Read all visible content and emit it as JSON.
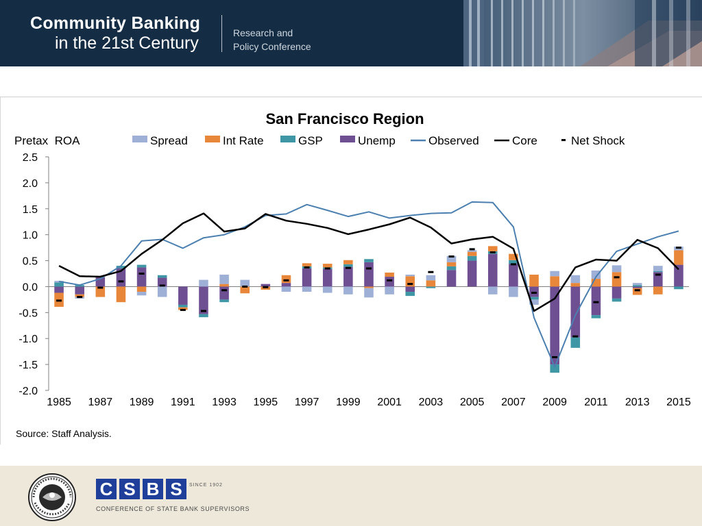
{
  "header": {
    "brand_line1": "Community Banking",
    "brand_line2": "in the 21st Century",
    "conference_line1": "Research and",
    "conference_line2": "Policy Conference"
  },
  "footer": {
    "source": "Source: Staff Analysis.",
    "csbs_letters": [
      "C",
      "S",
      "B",
      "S"
    ],
    "csbs_since": "SINCE 1902",
    "csbs_name": "CONFERENCE OF STATE BANK SUPERVISORS",
    "seal_text": "FEDERAL RESERVE SYSTEM"
  },
  "colors": {
    "header_bg": "#142d45",
    "footer_bg": "#ede8da",
    "spread": "#9fb0d6",
    "int_rate": "#e8873a",
    "gsp": "#3f97a6",
    "unemp": "#6e4f92",
    "observed": "#4a7fb0",
    "core": "#000000",
    "csbs_blue": "#1f3f9a"
  },
  "chart_data": {
    "type": "bar",
    "title": "San Francisco Region",
    "ylabel": "Pretax  ROA",
    "ylim": [
      -2.0,
      2.5
    ],
    "yticks": [
      "2.5",
      "2.0",
      "1.5",
      "1.0",
      "0.5",
      "0.0",
      "-0.5",
      "-1.0",
      "-1.5",
      "-2.0"
    ],
    "x": [
      1985,
      1986,
      1987,
      1988,
      1989,
      1990,
      1991,
      1992,
      1993,
      1994,
      1995,
      1996,
      1997,
      1998,
      1999,
      2000,
      2001,
      2002,
      2003,
      2004,
      2005,
      2006,
      2007,
      2008,
      2009,
      2010,
      2011,
      2012,
      2013,
      2014,
      2015
    ],
    "xtick_labels": [
      "1985",
      "1987",
      "1989",
      "1991",
      "1993",
      "1995",
      "1997",
      "1999",
      "2001",
      "2003",
      "2005",
      "2007",
      "2009",
      "2011",
      "2013",
      "2015"
    ],
    "stacked": true,
    "legend_position": "top",
    "legend": [
      "Spread",
      "Int Rate",
      "GSP",
      "Unemp",
      "Observed",
      "Core",
      "Net Shock"
    ],
    "series": [
      {
        "name": "Spread",
        "kind": "bar",
        "values": [
          0.03,
          -0.03,
          0,
          0,
          -0.07,
          -0.2,
          0,
          0.13,
          0.18,
          0.13,
          0,
          -0.1,
          -0.1,
          -0.12,
          -0.15,
          -0.18,
          -0.15,
          0.03,
          0.1,
          0.12,
          0.03,
          -0.15,
          -0.2,
          -0.1,
          0.1,
          0.15,
          0.16,
          0.13,
          0.04,
          0.1,
          0.07
        ]
      },
      {
        "name": "Int Rate",
        "kind": "bar",
        "values": [
          -0.27,
          -0.05,
          -0.2,
          -0.3,
          -0.1,
          0,
          -0.05,
          0,
          0.05,
          -0.13,
          -0.06,
          0.15,
          0.06,
          0.07,
          0.08,
          -0.03,
          0.08,
          0.2,
          0.12,
          0.08,
          0.08,
          0.1,
          0.12,
          0.23,
          0.2,
          0.07,
          0.15,
          0.28,
          -0.13,
          -0.15,
          0.28
        ]
      },
      {
        "name": "GSP",
        "kind": "bar",
        "values": [
          0.08,
          0.03,
          0,
          0.05,
          0.05,
          0.05,
          -0.05,
          -0.06,
          -0.05,
          0,
          0,
          0,
          0.04,
          0.03,
          0.05,
          0.06,
          0,
          -0.08,
          -0.03,
          0.07,
          0.09,
          0.05,
          0.07,
          -0.05,
          -0.16,
          -0.2,
          -0.06,
          -0.06,
          0.03,
          0.02,
          -0.05
        ]
      },
      {
        "name": "Unemp",
        "kind": "bar",
        "values": [
          -0.12,
          -0.15,
          0.18,
          0.35,
          0.37,
          0.17,
          -0.35,
          -0.53,
          -0.25,
          0,
          0.05,
          0.07,
          0.35,
          0.34,
          0.38,
          0.47,
          0.19,
          -0.1,
          0,
          0.32,
          0.5,
          0.63,
          0.44,
          -0.2,
          -1.5,
          -0.98,
          -0.55,
          -0.23,
          -0.03,
          0.28,
          0.42
        ]
      },
      {
        "name": "Observed",
        "kind": "line",
        "values": [
          0.1,
          0.03,
          0.15,
          0.4,
          0.88,
          0.91,
          0.74,
          0.94,
          1.0,
          1.15,
          1.37,
          1.4,
          1.58,
          1.47,
          1.35,
          1.44,
          1.32,
          1.37,
          1.41,
          1.42,
          1.63,
          1.62,
          1.15,
          -0.6,
          -1.55,
          -0.55,
          0.19,
          0.68,
          0.82,
          0.96,
          1.07
        ]
      },
      {
        "name": "Core",
        "kind": "line",
        "values": [
          0.4,
          0.2,
          0.19,
          0.3,
          0.63,
          0.9,
          1.22,
          1.41,
          1.06,
          1.12,
          1.4,
          1.27,
          1.21,
          1.13,
          1.01,
          1.1,
          1.2,
          1.33,
          1.14,
          0.83,
          0.91,
          0.96,
          0.73,
          -0.47,
          -0.23,
          0.37,
          0.52,
          0.5,
          0.9,
          0.74,
          0.33
        ]
      },
      {
        "name": "Net Shock",
        "kind": "marker",
        "values": [
          -0.27,
          -0.2,
          -0.02,
          0.1,
          0.25,
          0.02,
          -0.45,
          -0.47,
          -0.07,
          0,
          -0.01,
          0.12,
          0.37,
          0.35,
          0.36,
          0.35,
          0.12,
          0.05,
          0.28,
          0.58,
          0.72,
          0.66,
          0.43,
          -0.12,
          -1.36,
          -0.96,
          -0.3,
          0.18,
          -0.07,
          0.23,
          0.75
        ]
      }
    ]
  }
}
